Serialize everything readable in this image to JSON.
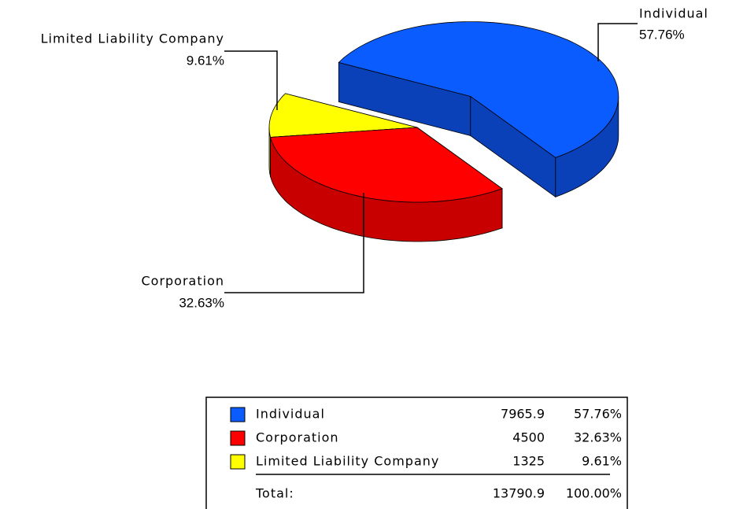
{
  "chart_data": {
    "type": "pie3d",
    "categories": [
      "Individual",
      "Corporation",
      "Limited Liability Company"
    ],
    "values": [
      7965.9,
      4500,
      1325
    ],
    "percents": [
      57.76,
      32.63,
      9.61
    ],
    "percent_labels": [
      "57.76%",
      "32.63%",
      "9.61%"
    ],
    "colors": [
      "#0a5cff",
      "#ff0000",
      "#ffff00"
    ],
    "side_colors": [
      "#0a40b8",
      "#c80000",
      "#c8c800"
    ],
    "total_label": "Total:",
    "total": 13790.9,
    "total_percent": 100,
    "total_percent_label": "100.00%"
  }
}
